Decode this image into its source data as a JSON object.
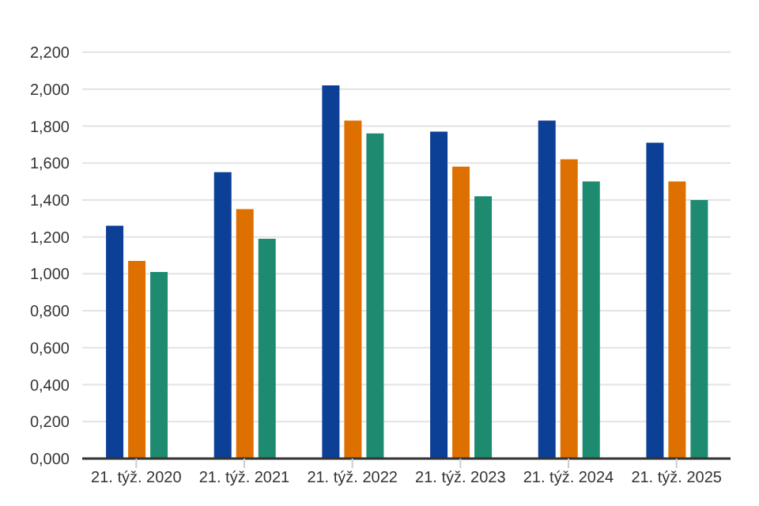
{
  "chart_data": {
    "type": "bar",
    "categories": [
      "21. týž. 2020",
      "21. týž. 2021",
      "21. týž. 2022",
      "21. týž. 2023",
      "21. týž. 2024",
      "21. týž. 2025"
    ],
    "series": [
      {
        "color": "#0c3f96",
        "values": [
          1.26,
          1.55,
          2.02,
          1.77,
          1.83,
          1.71
        ]
      },
      {
        "color": "#de7000",
        "values": [
          1.07,
          1.35,
          1.83,
          1.58,
          1.62,
          1.5
        ]
      },
      {
        "color": "#1e8a70",
        "values": [
          1.01,
          1.19,
          1.76,
          1.42,
          1.5,
          1.4
        ]
      }
    ],
    "ylim": [
      0,
      2.2
    ],
    "yticks": [
      {
        "value": 0,
        "label": "0,000"
      },
      {
        "value": 0.2,
        "label": "0,200"
      },
      {
        "value": 0.4,
        "label": "0,400"
      },
      {
        "value": 0.6,
        "label": "0,600"
      },
      {
        "value": 0.8,
        "label": "0,800"
      },
      {
        "value": 1,
        "label": "1,000"
      },
      {
        "value": 1.2,
        "label": "1,200"
      },
      {
        "value": 1.4,
        "label": "1,400"
      },
      {
        "value": 1.6,
        "label": "1,600"
      },
      {
        "value": 1.8,
        "label": "1,800"
      },
      {
        "value": 2,
        "label": "2,000"
      },
      {
        "value": 2.2,
        "label": "2,200"
      }
    ],
    "grid": "y"
  }
}
